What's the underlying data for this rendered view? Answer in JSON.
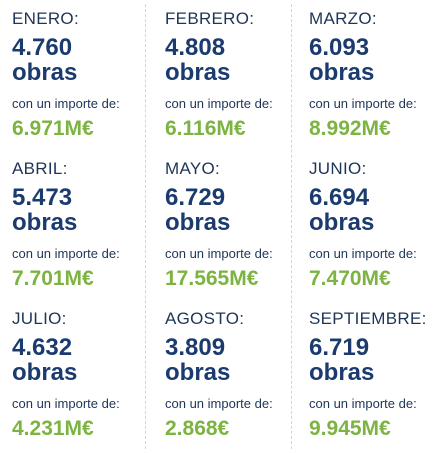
{
  "subtitle_label": "con un importe de:",
  "unit_label": "obras",
  "months": [
    {
      "name": "ENERO:",
      "count": "4.760",
      "amount": "6.971M€"
    },
    {
      "name": "FEBRERO:",
      "count": "4.808",
      "amount": "6.116M€"
    },
    {
      "name": "MARZO:",
      "count": "6.093",
      "amount": "8.992M€"
    },
    {
      "name": "ABRIL:",
      "count": "5.473",
      "amount": "7.701M€"
    },
    {
      "name": "MAYO:",
      "count": "6.729",
      "amount": "17.565M€"
    },
    {
      "name": "JUNIO:",
      "count": "6.694",
      "amount": "7.470M€"
    },
    {
      "name": "JULIO:",
      "count": "4.632",
      "amount": "4.231M€"
    },
    {
      "name": "AGOSTO:",
      "count": "3.809",
      "amount": "2.868€"
    },
    {
      "name": "SEPTIEMBRE:",
      "count": "6.719",
      "amount": "9.945M€"
    }
  ],
  "colors": {
    "month_text": "#1d3557",
    "count_text": "#1b3b6f",
    "amount_text": "#7cb342",
    "divider": "#cfd5dc"
  }
}
